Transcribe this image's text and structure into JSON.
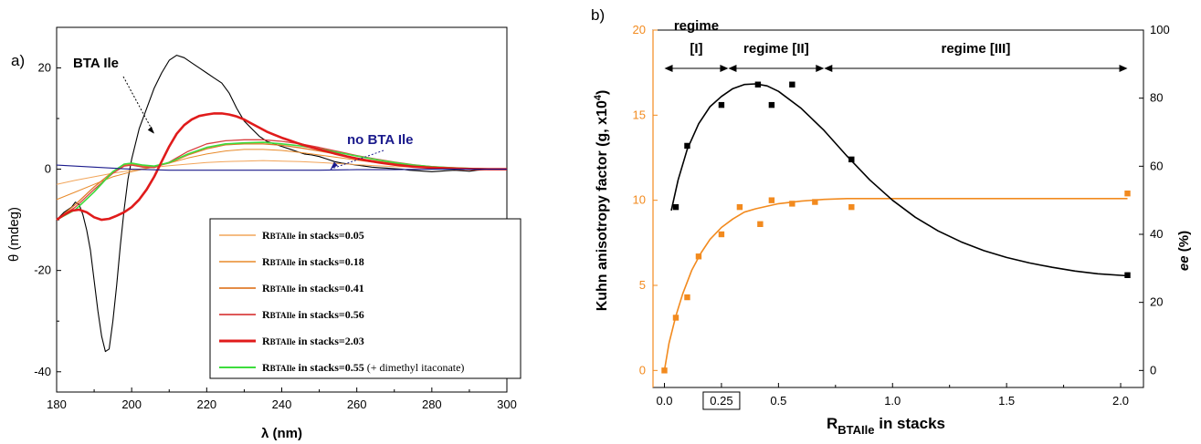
{
  "chart_data": [
    {
      "panel": "a)",
      "type": "line",
      "xlabel": "λ (nm)",
      "ylabel": "θ (mdeg)",
      "xlim": [
        180,
        300
      ],
      "ylim": [
        -44,
        28
      ],
      "xticks": [
        180,
        200,
        220,
        240,
        260,
        280,
        300
      ],
      "yticks": [
        -40,
        -20,
        0,
        20
      ],
      "annotations": [
        {
          "text": "BTA Ile",
          "color": "#000000",
          "target_x": 206,
          "target_y": 7
        },
        {
          "text": "no BTA Ile",
          "color": "#1a1a8c",
          "target_x": 253,
          "target_y": 0
        }
      ],
      "legend": {
        "placement": "bottom-right",
        "entries": [
          {
            "prefix": "R",
            "sub": "BTAIle",
            "text": " in stacks=0.05",
            "extra": "",
            "color": "#f2a55a",
            "width": 1
          },
          {
            "prefix": "R",
            "sub": "BTAIle",
            "text": " in stacks=0.18",
            "extra": "",
            "color": "#e88a2a",
            "width": 1
          },
          {
            "prefix": "R",
            "sub": "BTAIle",
            "text": " in stacks=0.41",
            "extra": "",
            "color": "#e07b2c",
            "width": 1.3
          },
          {
            "prefix": "R",
            "sub": "BTAIle",
            "text": " in stacks=0.56",
            "extra": "",
            "color": "#d94040",
            "width": 1.3
          },
          {
            "prefix": "R",
            "sub": "BTAIle",
            "text": " in stacks=2.03",
            "extra": "",
            "color": "#e01b1b",
            "width": 2.6
          },
          {
            "prefix": "R",
            "sub": "BTAIle",
            "text": "  in stacks=0.55",
            "extra": " (+ dimethyl itaconate)",
            "color": "#3ddc3d",
            "width": 1.6
          }
        ]
      },
      "series": [
        {
          "color": "#000000",
          "width": 1.1,
          "x": [
            180,
            182,
            184,
            185,
            186,
            187,
            188,
            189,
            190,
            191,
            192,
            193,
            194,
            195,
            196,
            197,
            198,
            199,
            200,
            202,
            204,
            206,
            208,
            210,
            212,
            214,
            216,
            218,
            220,
            222,
            224,
            226,
            228,
            230,
            232,
            234,
            236,
            238,
            240,
            242,
            244,
            246,
            248,
            250,
            252,
            254,
            256,
            258,
            260,
            262,
            264,
            266,
            268,
            270,
            272,
            274,
            276,
            278,
            280,
            282,
            284,
            286,
            288,
            290,
            292,
            294,
            296,
            298,
            300
          ],
          "y": [
            -10,
            -8.5,
            -7.5,
            -6.5,
            -7,
            -9,
            -12,
            -16,
            -22,
            -28,
            -33,
            -36,
            -35.5,
            -30,
            -23,
            -15,
            -8,
            -2,
            2,
            8,
            12,
            16,
            19,
            21.5,
            22.5,
            22,
            21,
            20,
            19,
            18,
            17,
            15,
            12,
            9.5,
            8,
            6.5,
            5.5,
            5,
            4.5,
            4,
            3.5,
            3,
            2.8,
            2.5,
            2,
            1.5,
            1.2,
            1,
            0.8,
            0.6,
            0.4,
            0.3,
            0.2,
            0.1,
            0,
            -0.2,
            -0.3,
            -0.4,
            -0.5,
            -0.4,
            -0.3,
            -0.2,
            -0.3,
            -0.4,
            -0.2,
            -0.1,
            0,
            0,
            0
          ]
        },
        {
          "color": "#f2a55a",
          "width": 1,
          "x": [
            180,
            185,
            190,
            195,
            200,
            205,
            210,
            215,
            220,
            225,
            230,
            235,
            240,
            245,
            250,
            255,
            260,
            265,
            270,
            275,
            280,
            285,
            290,
            295,
            300
          ],
          "y": [
            -3,
            -2.2,
            -1.5,
            -0.8,
            -0.2,
            0.3,
            0.7,
            1,
            1.3,
            1.5,
            1.6,
            1.7,
            1.6,
            1.5,
            1.3,
            1.1,
            0.9,
            0.7,
            0.5,
            0.4,
            0.3,
            0.2,
            0.1,
            0.05,
            0
          ]
        },
        {
          "color": "#e88a2a",
          "width": 1,
          "x": [
            180,
            185,
            190,
            195,
            200,
            205,
            210,
            215,
            220,
            225,
            230,
            235,
            240,
            245,
            250,
            255,
            260,
            265,
            270,
            275,
            280,
            285,
            290,
            295,
            300
          ],
          "y": [
            -6,
            -4.5,
            -3,
            -1.5,
            -0.5,
            0.3,
            1.2,
            2.2,
            3,
            3.6,
            3.9,
            3.9,
            3.7,
            3.3,
            2.8,
            2.3,
            1.8,
            1.3,
            0.9,
            0.6,
            0.4,
            0.2,
            0.1,
            0.05,
            0
          ]
        },
        {
          "color": "#e07b2c",
          "width": 1.3,
          "x": [
            180,
            185,
            190,
            195,
            198,
            200,
            203,
            206,
            210,
            215,
            220,
            225,
            230,
            235,
            240,
            245,
            250,
            255,
            260,
            265,
            270,
            275,
            280,
            285,
            290,
            295,
            300
          ],
          "y": [
            -10,
            -7,
            -3.5,
            -0.5,
            0.8,
            1,
            0.6,
            0.5,
            1.2,
            2.8,
            4,
            4.8,
            5,
            5,
            4.7,
            4.2,
            3.6,
            2.9,
            2.2,
            1.6,
            1.1,
            0.7,
            0.4,
            0.2,
            0.1,
            0.05,
            0
          ]
        },
        {
          "color": "#d94040",
          "width": 1.3,
          "x": [
            180,
            185,
            190,
            195,
            198,
            200,
            203,
            206,
            210,
            215,
            220,
            225,
            230,
            235,
            240,
            245,
            250,
            255,
            260,
            265,
            270,
            275,
            280,
            285,
            290,
            295,
            300
          ],
          "y": [
            -10,
            -7.5,
            -4,
            -0.8,
            0.6,
            0.8,
            0.4,
            0.3,
            1.4,
            3.5,
            5,
            5.6,
            5.8,
            5.8,
            5.5,
            5,
            4.3,
            3.5,
            2.7,
            2,
            1.4,
            0.9,
            0.5,
            0.3,
            0.15,
            0.05,
            0
          ]
        },
        {
          "color": "#3ddc3d",
          "width": 1.6,
          "x": [
            180,
            185,
            190,
            195,
            198,
            200,
            203,
            206,
            210,
            215,
            220,
            225,
            230,
            235,
            240,
            245,
            250,
            255,
            260,
            265,
            270,
            275,
            280,
            285,
            290,
            295,
            300
          ],
          "y": [
            -10,
            -8,
            -4.5,
            -0.5,
            1,
            1.2,
            0.8,
            0.6,
            1.3,
            3,
            4.3,
            5,
            5.2,
            5.3,
            5,
            4.6,
            4,
            3.3,
            2.6,
            1.9,
            1.3,
            0.8,
            0.5,
            0.3,
            0.15,
            0.05,
            0
          ]
        },
        {
          "color": "#e01b1b",
          "width": 2.6,
          "x": [
            180,
            182,
            184,
            186,
            188,
            190,
            192,
            194,
            196,
            198,
            200,
            202,
            204,
            206,
            208,
            210,
            212,
            214,
            216,
            218,
            220,
            222,
            224,
            226,
            228,
            230,
            232,
            234,
            236,
            238,
            240,
            242,
            244,
            246,
            248,
            250,
            254,
            258,
            262,
            266,
            270,
            275,
            280,
            285,
            290,
            295,
            300
          ],
          "y": [
            -10,
            -9,
            -8.2,
            -8,
            -8.5,
            -9.5,
            -10,
            -9.8,
            -9.2,
            -8.5,
            -7.5,
            -6,
            -4,
            -1.5,
            1.5,
            4.5,
            7,
            8.7,
            9.8,
            10.5,
            10.8,
            11,
            11,
            10.8,
            10.4,
            9.8,
            9,
            8.2,
            7.4,
            6.8,
            6.2,
            5.7,
            5.2,
            4.7,
            4.3,
            3.9,
            3.1,
            2.4,
            1.8,
            1.3,
            0.9,
            0.5,
            0.3,
            0.15,
            0.05,
            0,
            0
          ]
        },
        {
          "color": "#1a1a8c",
          "width": 1.1,
          "x": [
            180,
            190,
            200,
            210,
            220,
            230,
            240,
            250,
            260,
            270,
            280,
            290,
            300
          ],
          "y": [
            0.8,
            0.4,
            0,
            -0.2,
            -0.2,
            -0.2,
            -0.2,
            -0.2,
            -0.1,
            -0.1,
            0,
            0,
            0
          ]
        }
      ]
    },
    {
      "panel": "b)",
      "type": "scatter",
      "xlabel": "R",
      "xlabel_sub": "BTAIle",
      "xlabel_rest": " in stacks",
      "ylabel_left": "Kuhn anisotropy factor (g, x10",
      "ylabel_left_sup": "4",
      "ylabel_left_end": ")",
      "ylabel_right": "ee",
      "ylabel_right_rest": " (%)",
      "xlim": [
        -0.05,
        2.1
      ],
      "ylim_left": [
        -1,
        20
      ],
      "ylim_right": [
        -5,
        100
      ],
      "xtick_labels": [
        "0.0",
        "0.25",
        "0.5",
        "1.0",
        "1.5",
        "2.0"
      ],
      "xticks": [
        0,
        0.25,
        0.5,
        1.0,
        1.5,
        2.0
      ],
      "yticks_left": [
        0,
        5,
        10,
        15,
        20
      ],
      "yticks_right": [
        0,
        20,
        40,
        60,
        80,
        100
      ],
      "left_axis_color": "#f28a1e",
      "right_axis_color": "#000000",
      "regimes": [
        {
          "label": "regime",
          "label2": "[I]",
          "from": 0,
          "to": 0.28
        },
        {
          "label": "regime [II]",
          "label2": "",
          "from": 0.28,
          "to": 0.7
        },
        {
          "label": "regime [III]",
          "label2": "",
          "from": 0.7,
          "to": 2.03
        }
      ],
      "series": [
        {
          "axis": "left",
          "color": "#f28a1e",
          "points": [
            [
              0.0,
              0
            ],
            [
              0.05,
              3.1
            ],
            [
              0.1,
              4.3
            ],
            [
              0.15,
              6.7
            ],
            [
              0.25,
              8.0
            ],
            [
              0.33,
              9.6
            ],
            [
              0.42,
              8.6
            ],
            [
              0.47,
              10.0
            ],
            [
              0.56,
              9.8
            ],
            [
              0.66,
              9.9
            ],
            [
              0.82,
              9.6
            ],
            [
              2.03,
              10.4
            ]
          ],
          "fit_x": [
            0.0,
            0.02,
            0.05,
            0.08,
            0.12,
            0.16,
            0.2,
            0.25,
            0.3,
            0.35,
            0.4,
            0.5,
            0.6,
            0.7,
            0.8,
            1.0,
            1.2,
            1.5,
            2.03
          ],
          "fit_y": [
            0,
            1.6,
            3.2,
            4.5,
            5.9,
            6.9,
            7.7,
            8.4,
            8.9,
            9.3,
            9.5,
            9.8,
            9.95,
            10.05,
            10.1,
            10.1,
            10.1,
            10.1,
            10.1
          ]
        },
        {
          "axis": "right",
          "color": "#000000",
          "points": [
            [
              0.05,
              48
            ],
            [
              0.1,
              66
            ],
            [
              0.25,
              78
            ],
            [
              0.41,
              84
            ],
            [
              0.47,
              78
            ],
            [
              0.56,
              84
            ],
            [
              0.82,
              62
            ],
            [
              2.03,
              28
            ]
          ],
          "fit_x": [
            0.03,
            0.06,
            0.1,
            0.15,
            0.2,
            0.25,
            0.3,
            0.35,
            0.4,
            0.45,
            0.5,
            0.6,
            0.7,
            0.8,
            0.9,
            1.0,
            1.1,
            1.2,
            1.3,
            1.4,
            1.5,
            1.6,
            1.7,
            1.8,
            1.9,
            2.03
          ],
          "fit_y": [
            47,
            56,
            65,
            72.5,
            77.5,
            80.5,
            82.8,
            84,
            84.2,
            83.6,
            82,
            77,
            70.5,
            63,
            56,
            50,
            45,
            41,
            37.8,
            35.2,
            33.2,
            31.6,
            30.3,
            29.2,
            28.4,
            27.8
          ]
        }
      ]
    }
  ]
}
